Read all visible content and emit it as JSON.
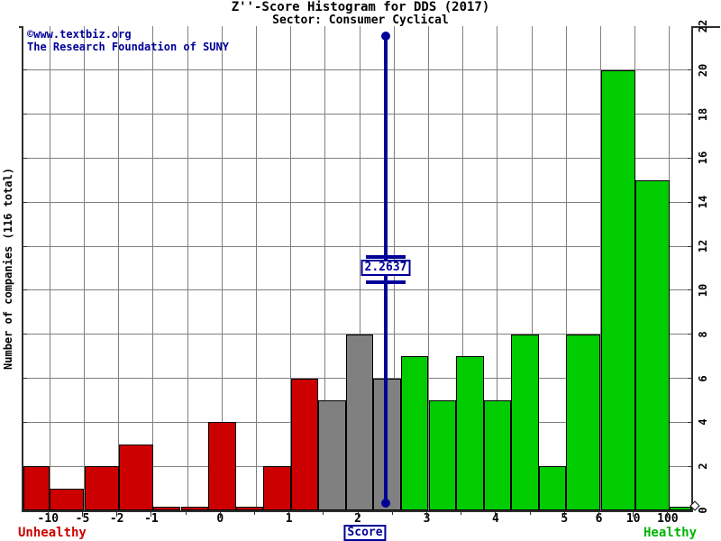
{
  "header": {
    "title": "Z''-Score Histogram for DDS (2017)",
    "subtitle": "Sector: Consumer Cyclical"
  },
  "watermark": {
    "line1": "©www.textbiz.org",
    "line2": "The Research Foundation of SUNY"
  },
  "axes": {
    "y_label": "Number of companies (116 total)",
    "x_label": "Score",
    "x_ticks": [
      "-10",
      "-5",
      "-2",
      "-1",
      "0",
      "1",
      "2",
      "3",
      "4",
      "5",
      "6",
      "10",
      "100"
    ],
    "y_ticks": [
      "0",
      "2",
      "4",
      "6",
      "8",
      "10",
      "12",
      "14",
      "16",
      "18",
      "20",
      "22"
    ]
  },
  "zones": {
    "unhealthy_label": "Unhealthy",
    "healthy_label": "Healthy"
  },
  "marker": {
    "value_label": "2.2637"
  },
  "colors": {
    "unhealthy": "#cc0000",
    "grey": "#808080",
    "healthy": "#00cc00",
    "marker": "#000099",
    "gridline": "#808080"
  },
  "chart_data": {
    "type": "bar",
    "title": "Z''-Score Histogram for DDS (2017)",
    "subtitle": "Sector: Consumer Cyclical",
    "xlabel": "Score",
    "ylabel": "Number of companies (116 total)",
    "ylim": [
      0,
      22
    ],
    "grid": true,
    "total_companies": 116,
    "marker_value": 2.2637,
    "x_tick_labels": [
      "-10",
      "-5",
      "-2",
      "-1",
      "0",
      "1",
      "2",
      "3",
      "4",
      "5",
      "6",
      "10",
      "100"
    ],
    "bins": [
      {
        "range": "< -10",
        "value": 2,
        "zone": "unhealthy"
      },
      {
        "range": "-10 to -5",
        "value": 1,
        "zone": "unhealthy"
      },
      {
        "range": "-5 to -2",
        "value": 2,
        "zone": "unhealthy"
      },
      {
        "range": "-2 to -1",
        "value": 3,
        "zone": "unhealthy"
      },
      {
        "range": "-1 to -0.6",
        "value": 0,
        "zone": "unhealthy"
      },
      {
        "range": "-0.6 to -0.2",
        "value": 0,
        "zone": "unhealthy"
      },
      {
        "range": "-0.2 to 0.2",
        "value": 4,
        "zone": "unhealthy"
      },
      {
        "range": "0.2 to 0.6",
        "value": 0,
        "zone": "unhealthy"
      },
      {
        "range": "0.6 to 1",
        "value": 2,
        "zone": "unhealthy"
      },
      {
        "range": "1 to 1.4",
        "value": 6,
        "zone": "unhealthy"
      },
      {
        "range": "1.4 to 1.8",
        "value": 5,
        "zone": "grey"
      },
      {
        "range": "1.8 to 2.2",
        "value": 8,
        "zone": "grey"
      },
      {
        "range": "2.2 to 2.6",
        "value": 6,
        "zone": "grey"
      },
      {
        "range": "2.6 to 3",
        "value": 7,
        "zone": "healthy"
      },
      {
        "range": "3 to 3.4",
        "value": 5,
        "zone": "healthy"
      },
      {
        "range": "3.4 to 3.8",
        "value": 7,
        "zone": "healthy"
      },
      {
        "range": "3.8 to 4.2",
        "value": 5,
        "zone": "healthy"
      },
      {
        "range": "4.2 to 4.6",
        "value": 8,
        "zone": "healthy"
      },
      {
        "range": "4.6 to 5",
        "value": 2,
        "zone": "healthy"
      },
      {
        "range": "5 to 6",
        "value": 8,
        "zone": "healthy"
      },
      {
        "range": "6 to 10",
        "value": 20,
        "zone": "healthy"
      },
      {
        "range": "10 to 100",
        "value": 15,
        "zone": "healthy"
      },
      {
        "range": "> 100",
        "value": 0,
        "zone": "healthy"
      }
    ]
  }
}
